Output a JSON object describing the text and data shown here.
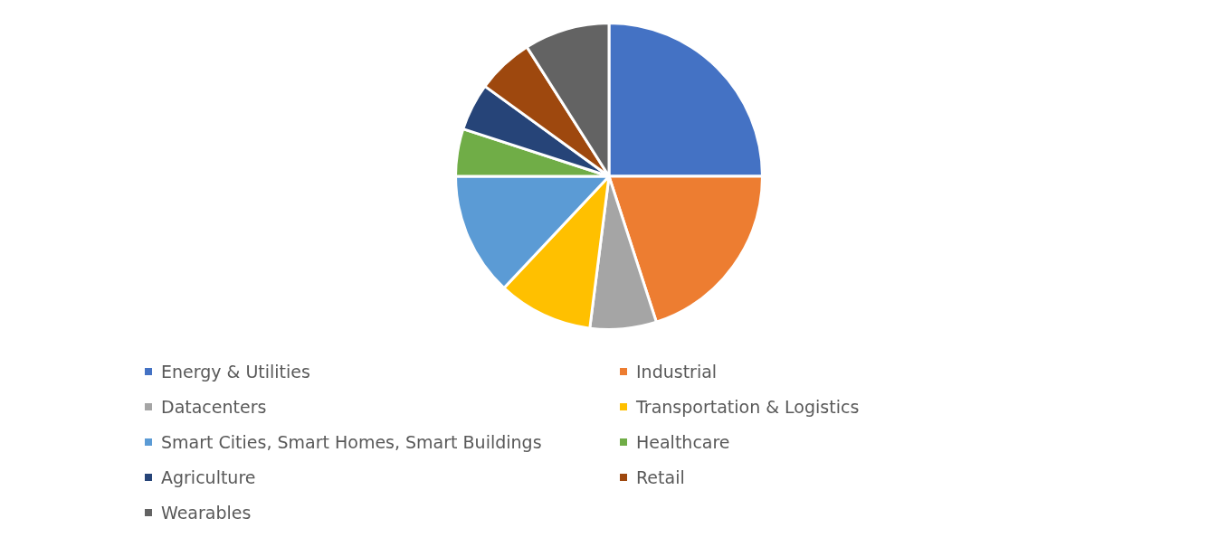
{
  "chart_data": {
    "type": "pie",
    "categories": [
      "Energy & Utilities",
      "Industrial",
      "Datacenters",
      "Transportation & Logistics",
      "Smart Cities, Smart Homes, Smart Buildings",
      "Healthcare",
      "Agriculture",
      "Retail",
      "Wearables"
    ],
    "values": [
      25,
      20,
      7,
      10,
      13,
      5,
      5,
      6,
      9
    ],
    "colors": [
      "#4472c4",
      "#ed7d31",
      "#a5a5a5",
      "#ffc000",
      "#5b9bd5",
      "#70ad47",
      "#264478",
      "#9e480e",
      "#636363"
    ],
    "legend": "bottom"
  }
}
